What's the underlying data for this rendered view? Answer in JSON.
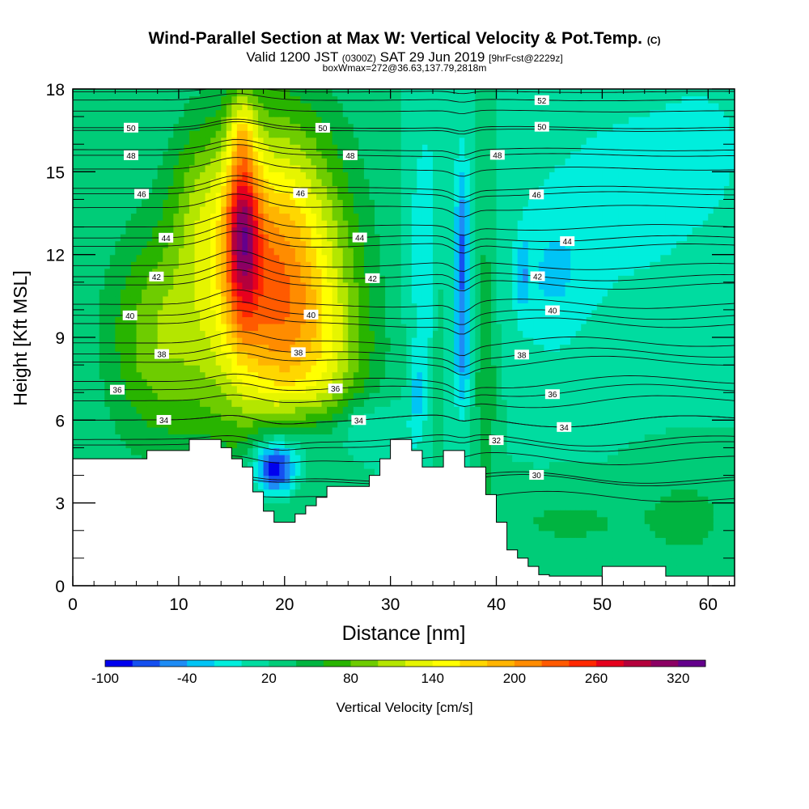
{
  "header": {
    "title_main": "Wind-Parallel Section at Max W: Vertical Velocity & Pot.Temp.",
    "title_mark": "(C)",
    "valid_prefix": "Valid 1200 JST",
    "valid_utc": "(0300Z)",
    "valid_date": "SAT 29 Jun 2019",
    "valid_fcst": "[9hrFcst@2229z]",
    "box_info": "boxWmax=272@36.63,137.79,2818m"
  },
  "chart_data": {
    "type": "heatmap",
    "xlabel": "Distance [nm]",
    "ylabel": "Height [Kft MSL]",
    "xlim": [
      0,
      62.5
    ],
    "ylim": [
      0,
      18
    ],
    "x_ticks": [
      "0",
      "10",
      "20",
      "30",
      "40",
      "50",
      "60"
    ],
    "y_ticks": [
      "0",
      "3",
      "6",
      "9",
      "12",
      "15",
      "18"
    ],
    "colorbar": {
      "label": "Vertical Velocity [cm/s]",
      "tick_labels": [
        "-100",
        "-40",
        "20",
        "80",
        "140",
        "200",
        "260",
        "320"
      ],
      "colors": [
        "#0000ee",
        "#1550f0",
        "#1e8cf5",
        "#00c4f5",
        "#00eedd",
        "#00dca0",
        "#00cc78",
        "#00b440",
        "#28b400",
        "#6ecc00",
        "#b4e600",
        "#e6f500",
        "#ffff00",
        "#ffd700",
        "#ffb400",
        "#ff8c00",
        "#ff5a00",
        "#ff2800",
        "#e6001e",
        "#b4003c",
        "#8c0064",
        "#64008c"
      ]
    },
    "terrain_kft": [
      [
        0,
        4.6
      ],
      [
        7,
        4.6
      ],
      [
        7,
        4.9
      ],
      [
        11,
        4.9
      ],
      [
        11,
        5.3
      ],
      [
        14,
        5.3
      ],
      [
        14,
        5
      ],
      [
        15,
        5
      ],
      [
        15,
        4.6
      ],
      [
        16,
        4.6
      ],
      [
        16,
        4.3
      ],
      [
        17,
        4.3
      ],
      [
        17,
        3.4
      ],
      [
        18,
        3.4
      ],
      [
        18,
        2.7
      ],
      [
        19,
        2.7
      ],
      [
        19,
        2.3
      ],
      [
        21,
        2.3
      ],
      [
        21,
        2.6
      ],
      [
        22,
        2.6
      ],
      [
        22,
        2.9
      ],
      [
        23,
        2.9
      ],
      [
        23,
        3.2
      ],
      [
        24,
        3.2
      ],
      [
        24,
        3.6
      ],
      [
        28,
        3.6
      ],
      [
        28,
        4.0
      ],
      [
        29,
        4.0
      ],
      [
        29,
        4.6
      ],
      [
        30,
        4.6
      ],
      [
        30,
        5.3
      ],
      [
        32,
        5.3
      ],
      [
        32,
        4.9
      ],
      [
        33,
        4.9
      ],
      [
        33,
        4.3
      ],
      [
        35,
        4.3
      ],
      [
        35,
        4.9
      ],
      [
        37,
        4.9
      ],
      [
        37,
        4.3
      ],
      [
        39,
        4.3
      ],
      [
        39,
        3.3
      ],
      [
        40,
        3.3
      ],
      [
        40,
        2.3
      ],
      [
        41,
        2.3
      ],
      [
        41,
        1.3
      ],
      [
        42,
        1.3
      ],
      [
        42,
        1.0
      ],
      [
        43,
        1.0
      ],
      [
        43,
        0.7
      ],
      [
        44,
        0.7
      ],
      [
        44,
        0.4
      ],
      [
        45,
        0.4
      ],
      [
        45,
        0.35
      ],
      [
        50,
        0.35
      ],
      [
        50,
        0.7
      ],
      [
        56,
        0.7
      ],
      [
        56,
        0.35
      ],
      [
        62.5,
        0.35
      ]
    ],
    "theta_contours": [
      {
        "label": "30",
        "base_kft": 3.8,
        "label_x_nm": 43.8
      },
      {
        "label": "32",
        "base_kft": 5.1,
        "label_x_nm": 40
      },
      {
        "label": "34",
        "base_kft": 6.0,
        "label_x_nm": 8.6
      },
      {
        "label": "34",
        "base_kft": 6.0,
        "label_x_nm": 27
      },
      {
        "label": "34",
        "base_kft": 6.0,
        "label_x_nm": 46.4
      },
      {
        "label": "36",
        "base_kft": 7.1,
        "label_x_nm": 4.2
      },
      {
        "label": "36",
        "base_kft": 7.1,
        "label_x_nm": 24.8
      },
      {
        "label": "36",
        "base_kft": 7.1,
        "label_x_nm": 45.3
      },
      {
        "label": "38",
        "base_kft": 8.4,
        "label_x_nm": 8.4
      },
      {
        "label": "38",
        "base_kft": 8.4,
        "label_x_nm": 21.3
      },
      {
        "label": "38",
        "base_kft": 8.4,
        "label_x_nm": 42.4
      },
      {
        "label": "40",
        "base_kft": 9.8,
        "label_x_nm": 5.4
      },
      {
        "label": "40",
        "base_kft": 9.8,
        "label_x_nm": 22.5
      },
      {
        "label": "40",
        "base_kft": 9.8,
        "label_x_nm": 45.3
      },
      {
        "label": "42",
        "base_kft": 11.2,
        "label_x_nm": 7.9
      },
      {
        "label": "42",
        "base_kft": 11.2,
        "label_x_nm": 28.3
      },
      {
        "label": "42",
        "base_kft": 11.2,
        "label_x_nm": 43.9
      },
      {
        "label": "44",
        "base_kft": 12.6,
        "label_x_nm": 8.8
      },
      {
        "label": "44",
        "base_kft": 12.6,
        "label_x_nm": 27.1
      },
      {
        "label": "44",
        "base_kft": 12.6,
        "label_x_nm": 46.7
      },
      {
        "label": "46",
        "base_kft": 14.2,
        "label_x_nm": 6.5
      },
      {
        "label": "46",
        "base_kft": 14.2,
        "label_x_nm": 21.5
      },
      {
        "label": "46",
        "base_kft": 14.2,
        "label_x_nm": 43.8
      },
      {
        "label": "48",
        "base_kft": 15.6,
        "label_x_nm": 5.5
      },
      {
        "label": "48",
        "base_kft": 15.6,
        "label_x_nm": 26.2
      },
      {
        "label": "48",
        "base_kft": 15.6,
        "label_x_nm": 40.1
      },
      {
        "label": "50",
        "base_kft": 16.6,
        "label_x_nm": 5.5
      },
      {
        "label": "50",
        "base_kft": 16.6,
        "label_x_nm": 23.6
      },
      {
        "label": "50",
        "base_kft": 16.6,
        "label_x_nm": 44.3
      },
      {
        "label": "52",
        "base_kft": 17.6,
        "label_x_nm": 44.3
      }
    ],
    "w_features_cm_s": [
      {
        "x_nm": 16,
        "z_kft": 13,
        "peak": 320
      },
      {
        "x_nm": 20,
        "z_kft": 12.5,
        "peak": 240
      },
      {
        "x_nm": 23,
        "z_kft": 10,
        "peak": 150
      },
      {
        "x_nm": 9,
        "z_kft": 9,
        "peak": 110
      },
      {
        "x_nm": 37,
        "z_kft": 12,
        "peak": -100
      },
      {
        "x_nm": 36.5,
        "z_kft": 7.5,
        "peak": -40
      },
      {
        "x_nm": 19,
        "z_kft": 4.3,
        "peak": -100
      },
      {
        "x_nm": 33,
        "z_kft": 8,
        "peak": -30
      },
      {
        "x_nm": 42,
        "z_kft": 11.5,
        "peak": -60
      }
    ]
  }
}
